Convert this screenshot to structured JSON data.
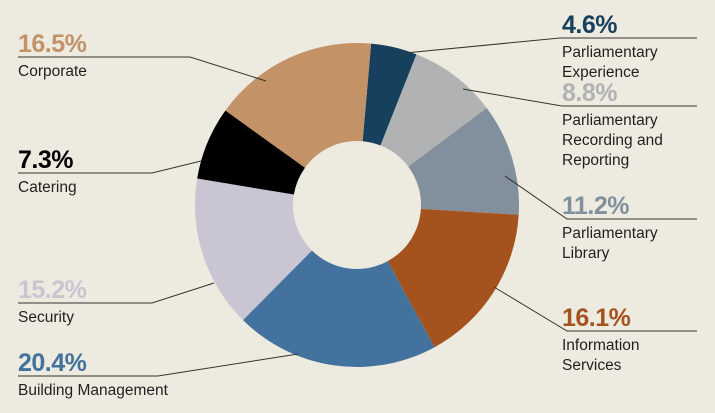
{
  "figure": {
    "background_color": "#EDEADF",
    "leader_line_color": "#35332C",
    "label_text_color": "#231F20"
  },
  "chart_data": {
    "type": "pie",
    "subtype": "donut",
    "title": "",
    "direction": "clockwise",
    "start_offset_deg": 5,
    "legend_position": "callout-labels",
    "segments": [
      {
        "label": "Parliamentary Experience",
        "pct_label": "4.6%",
        "value": 4.6,
        "color": "#17405F"
      },
      {
        "label": "Parliamentary Recording and Reporting",
        "pct_label": "8.8%",
        "value": 8.8,
        "color": "#B1B2B4"
      },
      {
        "label": "Parliamentary Library",
        "pct_label": "11.2%",
        "value": 11.2,
        "color": "#82909D"
      },
      {
        "label": "Information Services",
        "pct_label": "16.1%",
        "value": 16.1,
        "color": "#A5531E"
      },
      {
        "label": "Building Management",
        "pct_label": "20.4%",
        "value": 20.4,
        "color": "#44729E"
      },
      {
        "label": "Security",
        "pct_label": "15.2%",
        "value": 15.2,
        "color": "#C9C5D3"
      },
      {
        "label": "Catering",
        "pct_label": "7.3%",
        "value": 7.3,
        "color": "#000000"
      },
      {
        "label": "Corporate",
        "pct_label": "16.5%",
        "value": 16.5,
        "color": "#C39367"
      }
    ]
  }
}
